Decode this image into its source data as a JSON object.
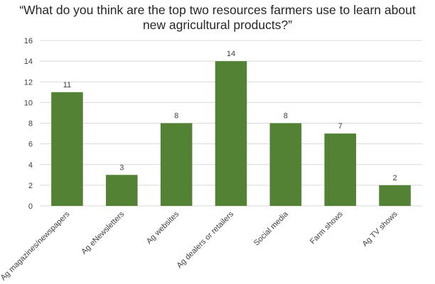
{
  "chart_data": {
    "type": "bar",
    "title": "“What do you think are the top two resources farmers use to learn about new agricultural products?”",
    "categories": [
      "Ag magazines/newspapers",
      "Ag eNewsletters",
      "Ag websites",
      "Ag dealers or retailers",
      "Social media",
      "Farm shows",
      "Ag TV shows"
    ],
    "values": [
      11,
      3,
      8,
      14,
      8,
      7,
      2
    ],
    "xlabel": "",
    "ylabel": "",
    "ylim": [
      0,
      16
    ],
    "yticks": [
      0,
      2,
      4,
      6,
      8,
      10,
      12,
      14,
      16
    ],
    "grid": true,
    "legend": "none",
    "data_labels": true,
    "bar_color": "#548235",
    "grid_color": "#d9d9d9",
    "text_color": "#404040"
  }
}
